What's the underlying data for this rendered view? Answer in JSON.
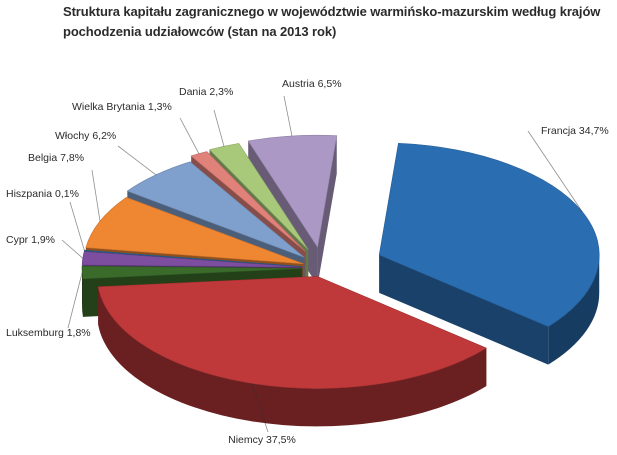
{
  "chart_data": {
    "type": "pie",
    "title": "Struktura kapitału zagranicznego w województwie warmińsko-mazurskim według krajów pochodzenia udziałowców (stan na 2013 rok)",
    "slices": [
      {
        "label": "Francja",
        "value": 34.7,
        "value_label": "34,7%",
        "color": "#2a6db0"
      },
      {
        "label": "Niemcy",
        "value": 37.5,
        "value_label": "37,5%",
        "color": "#c0393a"
      },
      {
        "label": "Luksemburg",
        "value": 1.8,
        "value_label": "1,8%",
        "color": "#3a6b2a"
      },
      {
        "label": "Cypr",
        "value": 1.9,
        "value_label": "1,9%",
        "color": "#7d4ea0"
      },
      {
        "label": "Hiszpania",
        "value": 0.1,
        "value_label": "0,1%",
        "color": "#2a6a98"
      },
      {
        "label": "Belgia",
        "value": 7.8,
        "value_label": "7,8%",
        "color": "#ef8632"
      },
      {
        "label": "Włochy",
        "value": 6.2,
        "value_label": "6,2%",
        "color": "#7f9fcc"
      },
      {
        "label": "Wielka Brytania",
        "value": 1.3,
        "value_label": "1,3%",
        "color": "#e0817a"
      },
      {
        "label": "Dania",
        "value": 2.3,
        "value_label": "2,3%",
        "color": "#a8c87a"
      },
      {
        "label": "Austria",
        "value": 6.5,
        "value_label": "6,5%",
        "color": "#ab98c4"
      }
    ],
    "legend": "none"
  }
}
